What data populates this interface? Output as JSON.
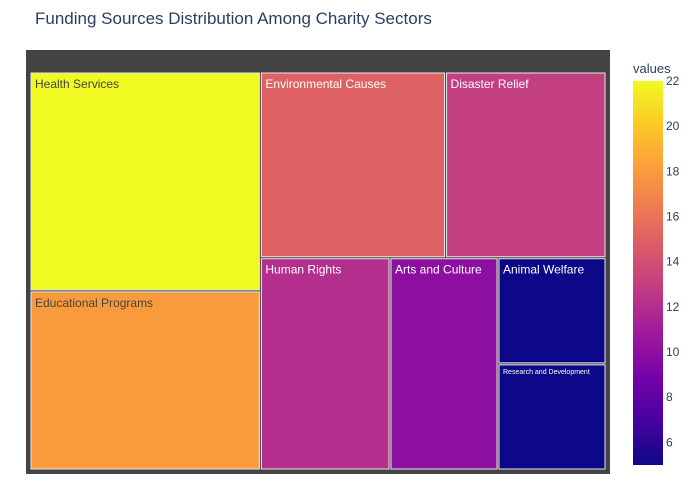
{
  "chart_data": {
    "type": "treemap",
    "title": "Funding Sources Distribution Among Charity Sectors",
    "root_label": "",
    "categories": [
      "Health Services",
      "Educational Programs",
      "Environmental Causes",
      "Disaster Relief",
      "Human Rights",
      "Arts and Culture",
      "Animal Welfare",
      "Research and Development"
    ],
    "values": [
      22,
      18,
      15,
      13,
      12,
      10,
      5,
      5
    ],
    "colorbar": {
      "title": "values",
      "range": [
        5,
        22
      ],
      "ticks": [
        6,
        8,
        10,
        12,
        14,
        16,
        18,
        20,
        22
      ]
    },
    "colorscale": "plasma"
  }
}
